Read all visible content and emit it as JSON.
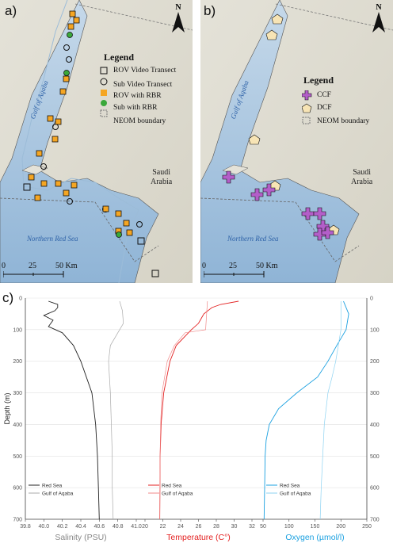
{
  "panels": {
    "a": "a)",
    "b": "b)",
    "c": "c)"
  },
  "north": "N",
  "legend_a": {
    "title": "Legend",
    "items": [
      "ROV Video Transect",
      "Sub Video Transect",
      "ROV with RBR",
      "Sub with RBR",
      "NEOM boundary"
    ]
  },
  "legend_b": {
    "title": "Legend",
    "items": [
      "CCF",
      "DCF",
      "NEOM boundary"
    ]
  },
  "places": {
    "gulf": "Gulf of Aqaba",
    "saudi_line1": "Saudi",
    "saudi_line2": "Arabia",
    "red_sea": "Northern Red Sea"
  },
  "scalebar": {
    "zero": "0",
    "mid": "25",
    "end": "50 Km"
  },
  "colors": {
    "rov_rbr": "#f5a623",
    "sub_rbr": "#3aa83a",
    "ccf": "#b35ec9",
    "dcf": "#f7e4b5",
    "red_sea_salinity": "#222222",
    "aqaba_salinity": "#aaaaaa",
    "red_sea_temp": "#e32020",
    "aqaba_temp": "#f08a8a",
    "red_sea_oxygen": "#1aa0e0",
    "aqaba_oxygen": "#8ed3f2"
  },
  "chart_data": [
    {
      "type": "line",
      "xlabel": "Salinity (PSU)",
      "ylabel": "Depth (m)",
      "xlim": [
        39.8,
        41.0
      ],
      "ylim": [
        700,
        0
      ],
      "xticks": [
        "39.8",
        "40.0",
        "40.2",
        "40.4",
        "40.6",
        "40.8",
        "41.0"
      ],
      "series": [
        {
          "name": "Red Sea",
          "depth": [
            10,
            20,
            30,
            40,
            55,
            70,
            90,
            110,
            150,
            200,
            300,
            400,
            500,
            600,
            700
          ],
          "values": [
            40.05,
            40.15,
            40.15,
            40.12,
            40.0,
            40.1,
            40.05,
            40.2,
            40.32,
            40.4,
            40.52,
            40.56,
            40.58,
            40.59,
            40.6
          ]
        },
        {
          "name": "Gulf of Aqaba",
          "depth": [
            10,
            40,
            80,
            110,
            150,
            200,
            300,
            400,
            500,
            600,
            700
          ],
          "values": [
            40.82,
            40.85,
            40.86,
            40.8,
            40.72,
            40.7,
            40.72,
            40.73,
            40.74,
            40.74,
            40.75
          ]
        }
      ],
      "legend": "bottom-left",
      "grid": "horizontal"
    },
    {
      "type": "line",
      "xlabel": "Temperature (C°)",
      "xlim": [
        20,
        32
      ],
      "ylim": [
        700,
        0
      ],
      "xticks": [
        "20",
        "22",
        "24",
        "26",
        "28",
        "30",
        "32"
      ],
      "series": [
        {
          "name": "Red Sea",
          "depth": [
            10,
            20,
            30,
            50,
            80,
            100,
            150,
            200,
            300,
            400,
            500,
            700
          ],
          "values": [
            30.5,
            28.5,
            27.5,
            26.6,
            26.0,
            25.2,
            23.5,
            22.8,
            22.1,
            21.8,
            21.7,
            21.65
          ]
        },
        {
          "name": "Gulf of Aqaba",
          "depth": [
            10,
            100,
            110,
            150,
            200,
            300,
            400,
            500,
            700
          ],
          "values": [
            27.0,
            26.8,
            24.5,
            23.3,
            22.5,
            21.9,
            21.75,
            21.7,
            21.65
          ]
        }
      ],
      "legend": "bottom-left",
      "grid": "horizontal"
    },
    {
      "type": "line",
      "xlabel": "Oxygen (µmol/l)",
      "xlim": [
        50,
        250
      ],
      "ylim": [
        700,
        0
      ],
      "xticks": [
        "50",
        "100",
        "150",
        "200",
        "250"
      ],
      "series": [
        {
          "name": "Red Sea",
          "depth": [
            10,
            50,
            100,
            150,
            200,
            250,
            300,
            350,
            400,
            450,
            500,
            600,
            700
          ],
          "values": [
            205,
            215,
            210,
            192,
            175,
            155,
            115,
            80,
            62,
            56,
            54,
            53,
            52
          ]
        },
        {
          "name": "Gulf of Aqaba",
          "depth": [
            10,
            100,
            150,
            200,
            250,
            300,
            400,
            500,
            600,
            700
          ],
          "values": [
            200,
            200,
            195,
            190,
            183,
            175,
            168,
            165,
            162,
            160
          ]
        }
      ],
      "legend": "bottom-left",
      "grid": "horizontal"
    }
  ],
  "depth_ticks": [
    "0",
    "100",
    "200",
    "300",
    "400",
    "500",
    "600",
    "700"
  ]
}
